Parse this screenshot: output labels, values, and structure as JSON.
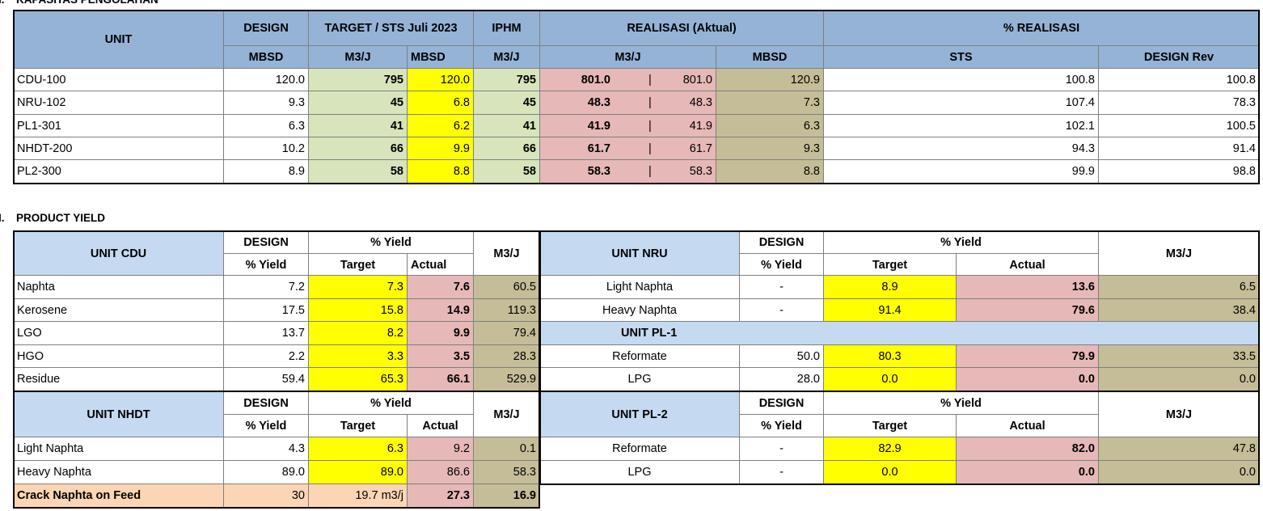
{
  "section1": {
    "number": "I.",
    "title": "KAPASITAS PENGOLAHAN"
  },
  "table1": {
    "headers": {
      "unit": "UNIT",
      "design": "DESIGN",
      "target": "TARGET / STS Juli 2023",
      "iphm": "IPHM",
      "realisasi": "REALISASI (Aktual)",
      "percent": "% REALISASI"
    },
    "subheaders": [
      "MBSD",
      "M3/J",
      "MBSD",
      "M3/J",
      "M3/J",
      "MBSD",
      "STS",
      "DESIGN Rev"
    ],
    "separator": "|",
    "rows": [
      [
        "CDU-100",
        "120.0",
        "795",
        "120.0",
        "795",
        "801.0",
        "801.0",
        "120.9",
        "100.8",
        "100.8"
      ],
      [
        "NRU-102",
        "9.3",
        "45",
        "6.8",
        "45",
        "48.3",
        "48.3",
        "7.3",
        "107.4",
        "78.3"
      ],
      [
        "PL1-301",
        "6.3",
        "41",
        "6.2",
        "41",
        "41.9",
        "41.9",
        "6.3",
        "102.1",
        "100.5"
      ],
      [
        "NHDT-200",
        "10.2",
        "66",
        "9.9",
        "66",
        "61.7",
        "61.7",
        "9.3",
        "94.3",
        "91.4"
      ],
      [
        "PL2-300",
        "8.9",
        "58",
        "8.8",
        "58",
        "58.3",
        "58.3",
        "8.8",
        "99.9",
        "98.8"
      ]
    ]
  },
  "section2": {
    "number": "I.",
    "title": "PRODUCT YIELD"
  },
  "cdu": {
    "unit": "UNIT CDU",
    "design": "DESIGN",
    "design_sub": "% Yield",
    "yield": "% Yield",
    "target": "Target",
    "actual": "Actual",
    "m3j": "M3/J",
    "rows": [
      [
        "Naphta",
        "7.2",
        "7.3",
        "7.6",
        "60.5"
      ],
      [
        "Kerosene",
        "17.5",
        "15.8",
        "14.9",
        "119.3"
      ],
      [
        "LGO",
        "13.7",
        "8.2",
        "9.9",
        "79.4"
      ],
      [
        "HGO",
        "2.2",
        "3.3",
        "3.5",
        "28.3"
      ],
      [
        "Residue",
        "59.4",
        "65.3",
        "66.1",
        "529.9"
      ]
    ]
  },
  "nhdt": {
    "unit": "UNIT NHDT",
    "design": "DESIGN",
    "design_sub": "% Yield",
    "yield": "% Yield",
    "target": "Target",
    "actual": "Actual",
    "m3j": "M3/J",
    "rows": [
      [
        "Light Naphta",
        "4.3",
        "6.3",
        "9.2",
        "0.1"
      ],
      [
        "Heavy Naphta",
        "89.0",
        "89.0",
        "86.6",
        "58.3"
      ],
      [
        "Crack Naphta on Feed",
        "30",
        "19.7 m3/j",
        "27.3",
        "16.9"
      ]
    ]
  },
  "nru": {
    "unit": "UNIT NRU",
    "design": "DESIGN",
    "design_sub": "% Yield",
    "yield": "% Yield",
    "target": "Target",
    "actual": "Actual",
    "m3j": "M3/J",
    "rows": [
      [
        "Light Naphta",
        "-",
        "8.9",
        "13.6",
        "6.5"
      ],
      [
        "Heavy Naphta",
        "-",
        "91.4",
        "79.6",
        "38.4"
      ]
    ],
    "sub_unit": "UNIT PL-1",
    "sub_rows": [
      [
        "Reformate",
        "50.0",
        "80.3",
        "79.9",
        "33.5"
      ],
      [
        "LPG",
        "28.0",
        "0.0",
        "0.0",
        "0.0"
      ]
    ]
  },
  "pl2": {
    "unit": "UNIT PL-2",
    "design": "DESIGN",
    "design_sub": "% Yield",
    "yield": "% Yield",
    "target": "Target",
    "actual": "Actual",
    "m3j": "M3/J",
    "rows": [
      [
        "Reformate",
        "-",
        "82.9",
        "82.0",
        "47.8"
      ],
      [
        "LPG",
        "-",
        "0.0",
        "0.0",
        "0.0"
      ]
    ]
  }
}
